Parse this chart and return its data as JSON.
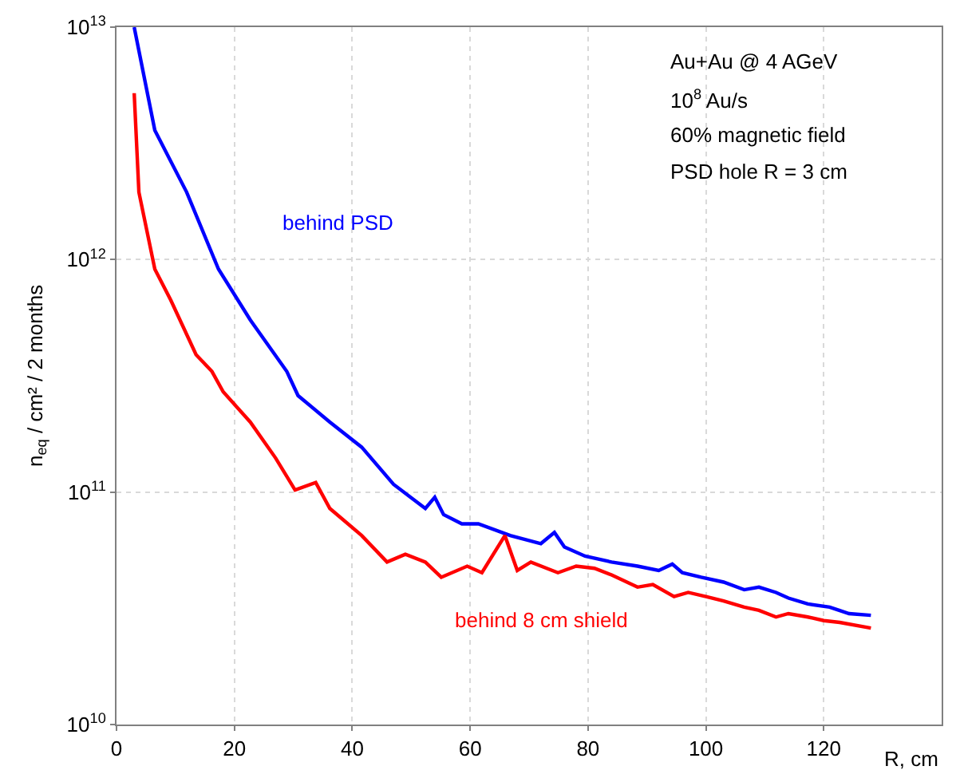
{
  "chart_data": {
    "type": "line",
    "xlabel": "R, cm",
    "ylabel": "n$_{eq}$ / cm² / 2 months",
    "log": "y",
    "grid": true,
    "legend": false,
    "marker": "none",
    "line_style": "solid",
    "xlim": [
      0,
      140
    ],
    "xticks": [
      0,
      20,
      40,
      60,
      80,
      100,
      120
    ],
    "ylim": [
      10000000000.0,
      10000000000000.0
    ],
    "yticks": [
      {
        "value": 10000000000.0,
        "label": "10$^{10}$"
      },
      {
        "value": 100000000000.0,
        "label": "10$^{11}$"
      },
      {
        "value": 1000000000000.0,
        "label": "10$^{12}$"
      },
      {
        "value": 10000000000000.0,
        "label": "10$^{13}$"
      }
    ],
    "series": [
      {
        "name": "behind PSD",
        "color": "#0000ff",
        "x": [
          3,
          6.5,
          11.9,
          17.3,
          22.7,
          28.9,
          30.8,
          36.2,
          41.6,
          47,
          52.4,
          54,
          55.5,
          58.6,
          61.4,
          66.8,
          72,
          74.3,
          76,
          79.5,
          84,
          88.4,
          92,
          94.3,
          96,
          99.2,
          103,
          106.5,
          109,
          111.9,
          114,
          117.3,
          121,
          124.3,
          128
        ],
        "values": [
          10000000000000.0,
          3600000000000.0,
          1950000000000.0,
          910000000000.0,
          550000000000.0,
          330000000000.0,
          260000000000.0,
          200000000000.0,
          156000000000.0,
          108000000000.0,
          85000000000.0,
          95000000000.0,
          80000000000.0,
          73000000000.0,
          73000000000.0,
          65000000000.0,
          60000000000.0,
          67000000000.0,
          58000000000.0,
          53000000000.0,
          50000000000.0,
          48000000000.0,
          46000000000.0,
          49000000000.0,
          45000000000.0,
          43000000000.0,
          41000000000.0,
          38000000000.0,
          39000000000.0,
          37000000000.0,
          35000000000.0,
          33000000000.0,
          32000000000.0,
          30000000000.0,
          29500000000.0
        ]
      },
      {
        "name": "behind 8 cm shield",
        "color": "#ff0000",
        "x": [
          3,
          3.8,
          6.5,
          9.2,
          13.5,
          16.2,
          18.1,
          22.7,
          27,
          30.3,
          33.8,
          36.2,
          41.6,
          45.9,
          49,
          52.4,
          55.1,
          59.5,
          62,
          65.9,
          68,
          70.3,
          74.9,
          78,
          81.1,
          84,
          88.4,
          91,
          94.6,
          97,
          100,
          103,
          106.5,
          109,
          111.9,
          114,
          117.3,
          120,
          122.7,
          128
        ],
        "values": [
          5200000000000.0,
          1950000000000.0,
          910000000000.0,
          670000000000.0,
          390000000000.0,
          330000000000.0,
          270000000000.0,
          200000000000.0,
          140000000000.0,
          102000000000.0,
          110000000000.0,
          85000000000.0,
          65000000000.0,
          50000000000.0,
          54000000000.0,
          50000000000.0,
          43000000000.0,
          48000000000.0,
          45000000000.0,
          65000000000.0,
          46000000000.0,
          50000000000.0,
          45000000000.0,
          48000000000.0,
          47000000000.0,
          44000000000.0,
          39000000000.0,
          40000000000.0,
          35500000000.0,
          37000000000.0,
          35500000000.0,
          34000000000.0,
          32000000000.0,
          31000000000.0,
          29000000000.0,
          30000000000.0,
          29000000000.0,
          28000000000.0,
          27500000000.0,
          26000000000.0
        ]
      }
    ],
    "annotations": [
      "Au+Au @ 4 AGeV",
      "10$^{8}$ Au/s",
      "60% magnetic field",
      "PSD hole R = 3 cm"
    ]
  }
}
